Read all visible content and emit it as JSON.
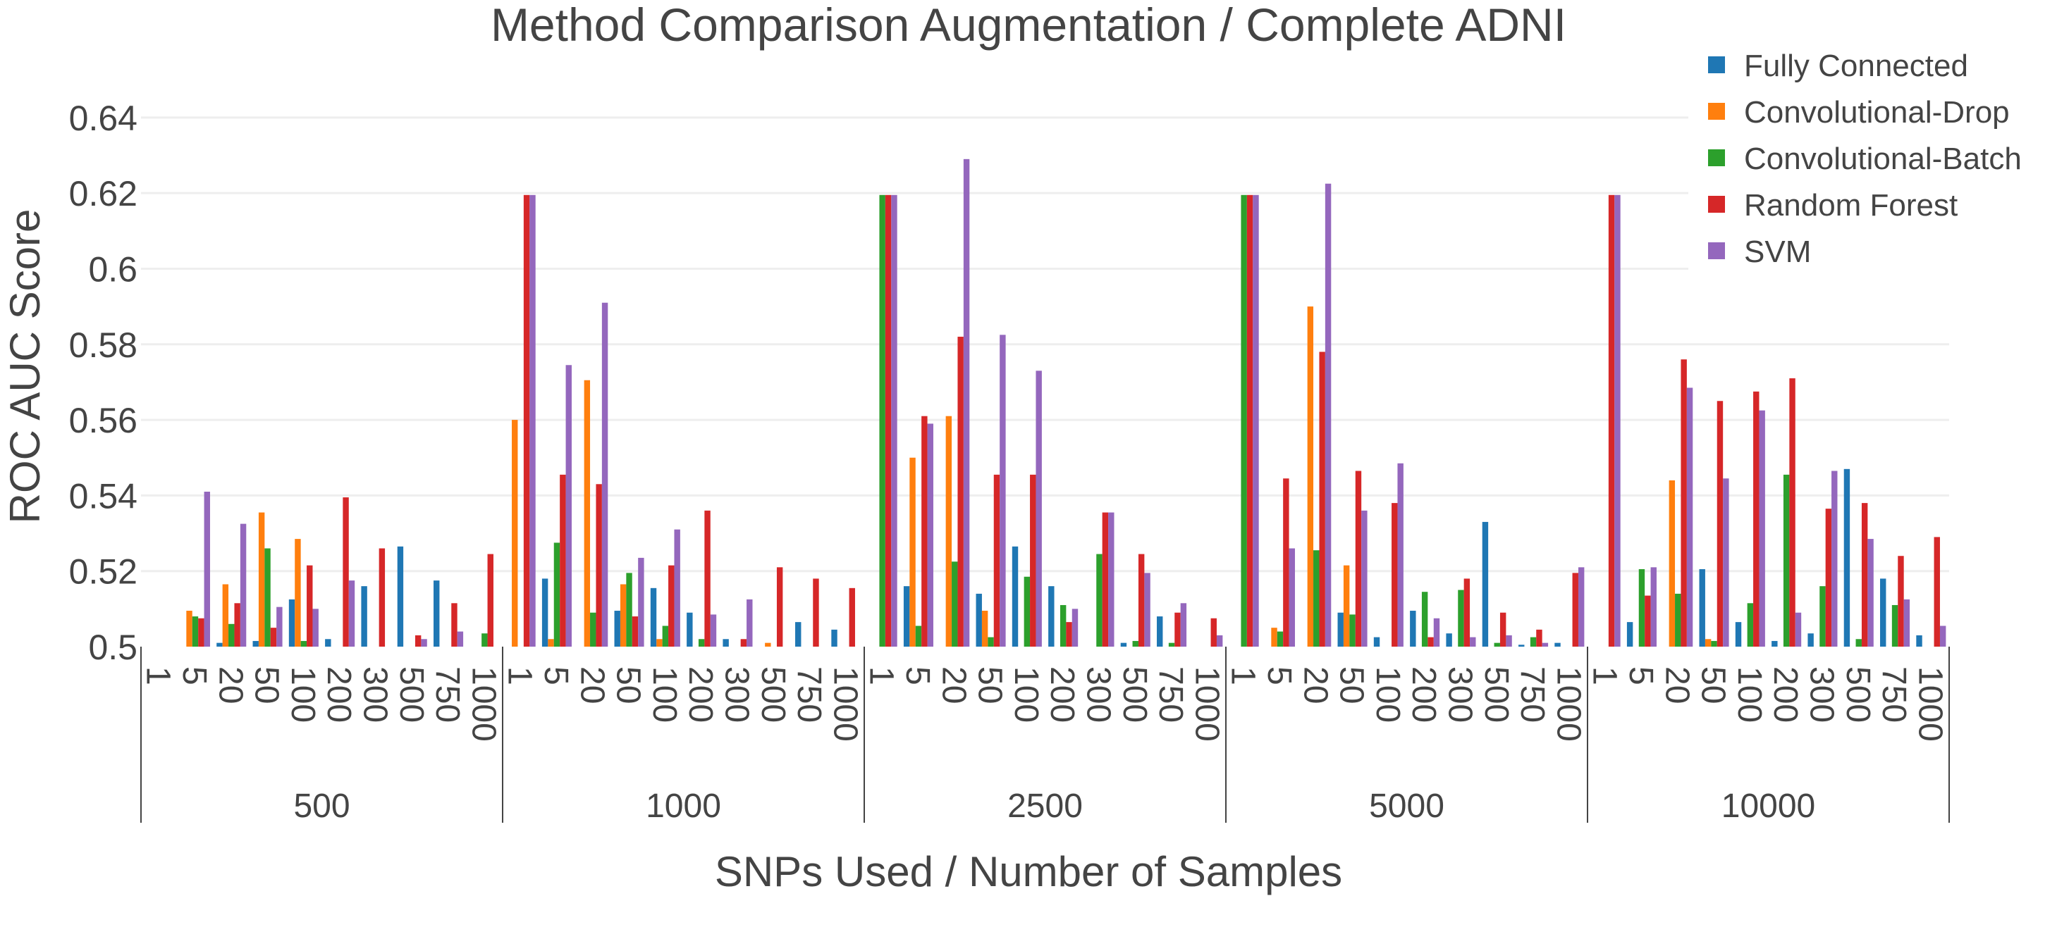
{
  "chart_data": {
    "type": "bar",
    "title": "Method Comparison Augmentation / Complete ADNI",
    "xlabel": "SNPs Used / Number of Samples",
    "ylabel": "ROC AUC Score",
    "ylim": [
      0.5,
      0.645
    ],
    "yticks": [
      "0.5",
      "0.52",
      "0.54",
      "0.56",
      "0.58",
      "0.6",
      "0.62",
      "0.64"
    ],
    "grid": true,
    "legend_position": "top-right",
    "groups": [
      "500",
      "1000",
      "2500",
      "5000",
      "10000"
    ],
    "categories": [
      "1",
      "5",
      "20",
      "50",
      "100",
      "200",
      "300",
      "500",
      "750",
      "1000"
    ],
    "series": [
      {
        "name": "Fully Connected",
        "color": "#1f77b4",
        "values": [
          [
            null,
            null,
            0.501,
            0.5015,
            0.5125,
            0.502,
            0.516,
            0.5265,
            0.5175,
            null
          ],
          [
            null,
            0.518,
            null,
            0.5095,
            0.5155,
            0.509,
            0.502,
            null,
            0.5065,
            0.5045
          ],
          [
            null,
            0.516,
            null,
            0.514,
            0.5265,
            0.516,
            null,
            0.501,
            0.508,
            null
          ],
          [
            null,
            null,
            null,
            0.509,
            0.5025,
            0.5095,
            0.5035,
            0.533,
            0.5005,
            0.501
          ],
          [
            null,
            0.5065,
            null,
            0.5205,
            0.5065,
            0.5015,
            0.5035,
            0.547,
            0.518,
            0.503
          ]
        ]
      },
      {
        "name": "Convolutional-Drop",
        "color": "#ff7f0e",
        "values": [
          [
            null,
            0.5095,
            0.5165,
            0.5355,
            0.5285,
            null,
            null,
            null,
            null,
            null
          ],
          [
            0.56,
            0.502,
            0.5705,
            0.5165,
            0.502,
            null,
            null,
            0.501,
            null,
            null
          ],
          [
            null,
            0.55,
            0.561,
            0.5095,
            null,
            null,
            null,
            null,
            null,
            null
          ],
          [
            null,
            0.505,
            0.59,
            0.5215,
            null,
            null,
            null,
            null,
            null,
            null
          ],
          [
            null,
            null,
            0.544,
            0.502,
            null,
            null,
            null,
            null,
            null,
            null
          ]
        ]
      },
      {
        "name": "Convolutional-Batch",
        "color": "#2ca02c",
        "values": [
          [
            null,
            0.508,
            0.506,
            0.526,
            0.5015,
            null,
            null,
            null,
            null,
            0.5035
          ],
          [
            null,
            0.5275,
            0.509,
            0.5195,
            0.5055,
            0.502,
            null,
            null,
            null,
            null
          ],
          [
            0.6195,
            0.5055,
            0.5225,
            0.5025,
            0.5185,
            0.511,
            0.5245,
            0.5015,
            0.501,
            null
          ],
          [
            0.6195,
            0.504,
            0.5255,
            0.5085,
            null,
            0.5145,
            0.515,
            0.501,
            0.5025,
            null
          ],
          [
            null,
            0.5205,
            0.514,
            0.5015,
            0.5115,
            0.5455,
            0.516,
            0.502,
            0.511,
            null
          ]
        ]
      },
      {
        "name": "Random Forest",
        "color": "#d62728",
        "values": [
          [
            null,
            0.5075,
            0.5115,
            0.505,
            0.5215,
            0.5395,
            0.526,
            0.503,
            0.5115,
            0.5245
          ],
          [
            0.6195,
            0.5455,
            0.543,
            0.508,
            0.5215,
            0.536,
            0.502,
            0.521,
            0.518,
            0.5155
          ],
          [
            0.6195,
            0.561,
            0.582,
            0.5455,
            0.5455,
            0.5065,
            0.5355,
            0.5245,
            0.509,
            0.5075
          ],
          [
            0.6195,
            0.5445,
            0.578,
            0.5465,
            0.538,
            0.5025,
            0.518,
            0.509,
            0.5045,
            0.5195
          ],
          [
            0.6195,
            0.5135,
            0.576,
            0.565,
            0.5675,
            0.571,
            0.5365,
            0.538,
            0.524,
            0.529
          ]
        ]
      },
      {
        "name": "SVM",
        "color": "#9467bd",
        "values": [
          [
            null,
            0.541,
            0.5325,
            0.5105,
            0.51,
            0.5175,
            null,
            0.502,
            0.504,
            null
          ],
          [
            0.6195,
            0.5745,
            0.591,
            0.5235,
            0.531,
            0.5085,
            0.5125,
            null,
            null,
            null
          ],
          [
            0.6195,
            0.559,
            0.629,
            0.5825,
            0.573,
            0.51,
            0.5355,
            0.5195,
            0.5115,
            0.503
          ],
          [
            0.6195,
            0.526,
            0.6225,
            0.536,
            0.5485,
            0.5075,
            0.5025,
            0.503,
            0.501,
            0.521
          ],
          [
            0.6195,
            0.521,
            0.5685,
            0.5445,
            0.5625,
            0.509,
            0.5465,
            0.5285,
            0.5125,
            0.5055
          ]
        ]
      }
    ]
  }
}
